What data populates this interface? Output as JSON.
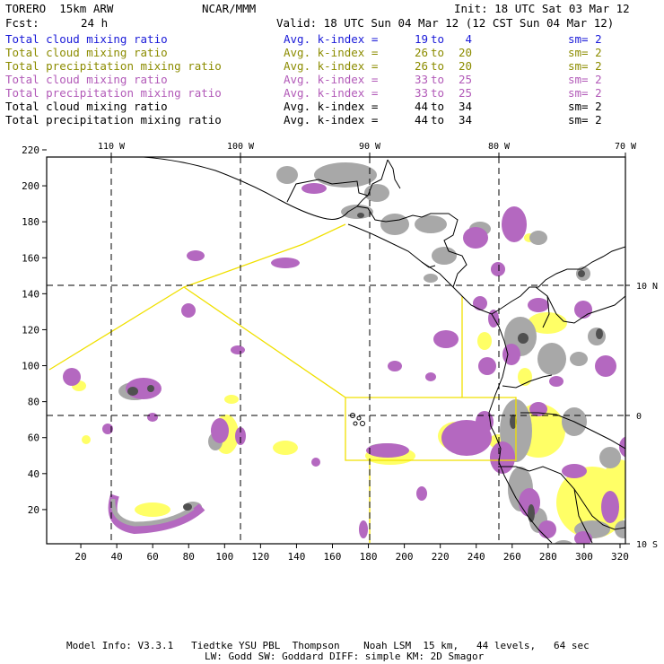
{
  "header": {
    "model": "TORERO  15km ARW",
    "agency": "NCAR/MMM",
    "init": "Init: 18 UTC Sat 03 Mar 12",
    "fcst_label": "Fcst:",
    "fcst_value": "24 h",
    "valid": "Valid: 18 UTC Sun 04 Mar 12 (12 CST Sun 04 Mar 12)"
  },
  "legend": [
    {
      "variable": "Total cloud mixing ratio",
      "index_label": "Avg. k-index =",
      "from": "19",
      "to_word": "to",
      "to": "4",
      "sm": "sm= 2",
      "color": "#1a1ad8"
    },
    {
      "variable": "Total cloud mixing ratio",
      "index_label": "Avg. k-index =",
      "from": "26",
      "to_word": "to",
      "to": "20",
      "sm": "sm= 2",
      "color": "#8c8c00"
    },
    {
      "variable": "Total precipitation mixing ratio",
      "index_label": "Avg. k-index =",
      "from": "26",
      "to_word": "to",
      "to": "20",
      "sm": "sm= 2",
      "color": "#8c8c00"
    },
    {
      "variable": "Total cloud mixing ratio",
      "index_label": "Avg. k-index =",
      "from": "33",
      "to_word": "to",
      "to": "25",
      "sm": "sm= 2",
      "color": "#b25ab8"
    },
    {
      "variable": "Total precipitation mixing ratio",
      "index_label": "Avg. k-index =",
      "from": "33",
      "to_word": "to",
      "to": "25",
      "sm": "sm= 2",
      "color": "#b25ab8"
    },
    {
      "variable": "Total cloud mixing ratio",
      "index_label": "Avg. k-index =",
      "from": "44",
      "to_word": "to",
      "to": "34",
      "sm": "sm= 2",
      "color": "#000000"
    },
    {
      "variable": "Total precipitation mixing ratio",
      "index_label": "Avg. k-index =",
      "from": "44",
      "to_word": "to",
      "to": "34",
      "sm": "sm= 2",
      "color": "#000000"
    }
  ],
  "map": {
    "lon_labels": [
      "110 W",
      "100 W",
      "90 W",
      "80 W",
      "70 W"
    ],
    "lat_labels": [
      "10 N",
      "0",
      "10 S"
    ],
    "y_ticks": [
      "220",
      "200",
      "180",
      "160",
      "140",
      "120",
      "100",
      "80",
      "60",
      "40",
      "20"
    ],
    "x_ticks": [
      "20",
      "40",
      "60",
      "80",
      "100",
      "120",
      "140",
      "160",
      "180",
      "200",
      "220",
      "240",
      "260",
      "280",
      "300",
      "320"
    ],
    "colors": {
      "gray": "#a8a8a8",
      "dark_gray": "#505050",
      "purple": "#b468c0",
      "yellow": "#ffff66",
      "yellow_line": "#f0e000",
      "coast": "#000000"
    }
  },
  "footer": {
    "line1": "Model Info: V3.3.1   Tiedtke YSU PBL  Thompson    Noah LSM  15 km,   44 levels,   64 sec",
    "line2": "LW: Godd SW: Goddard DIFF: simple KM: 2D Smagor"
  }
}
